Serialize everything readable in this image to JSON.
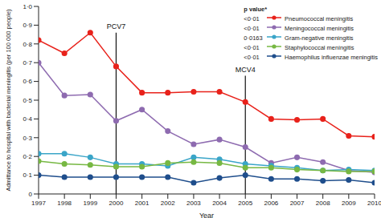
{
  "chart_data": {
    "type": "line",
    "x_label": "Year",
    "y_label": "Admittance to hospital with bacterial meningitis (per 100 000 people)",
    "x": [
      1997,
      1998,
      1999,
      2000,
      2001,
      2002,
      2003,
      2004,
      2005,
      2006,
      2007,
      2008,
      2009,
      2010
    ],
    "xlim": [
      1997,
      2010
    ],
    "xticks": [
      1997,
      1998,
      1999,
      2000,
      2001,
      2002,
      2003,
      2004,
      2005,
      2006,
      2007,
      2008,
      2009,
      2010
    ],
    "ylim": [
      0,
      1.0
    ],
    "yticks": [
      0,
      {
        "value": 0.1,
        "label": "0·1"
      },
      {
        "value": 0.2,
        "label": "0·2"
      },
      {
        "value": 0.3,
        "label": "0·3"
      },
      {
        "value": 0.4,
        "label": "0·4"
      },
      {
        "value": 0.5,
        "label": "0·5"
      },
      {
        "value": 0.6,
        "label": "0·6"
      },
      {
        "value": 0.7,
        "label": "0·7"
      },
      {
        "value": 0.8,
        "label": "0·8"
      },
      {
        "value": 0.9,
        "label": "0·9"
      },
      {
        "value": 1.0,
        "label": "1·0"
      }
    ],
    "grid": false,
    "legend": "upper right",
    "legend_title": "p value*",
    "series": [
      {
        "name": "Pneumococcal meningitis",
        "p_value": "<0·01",
        "color": "#e8221b",
        "marker": "circle",
        "values": [
          0.82,
          0.75,
          0.86,
          0.68,
          0.54,
          0.54,
          0.545,
          0.545,
          0.49,
          0.4,
          0.395,
          0.4,
          0.31,
          0.305
        ]
      },
      {
        "name": "Meningococcal meningitis",
        "p_value": "<0·01",
        "color": "#8e6bb0",
        "marker": "circle",
        "values": [
          0.7,
          0.525,
          0.53,
          0.39,
          0.45,
          0.335,
          0.265,
          0.29,
          0.25,
          0.165,
          0.195,
          0.17,
          0.125,
          0.115
        ]
      },
      {
        "name": "Gram-negative meningitis",
        "p_value": "0·0163",
        "color": "#3aa5c8",
        "marker": "circle",
        "values": [
          0.215,
          0.215,
          0.195,
          0.16,
          0.16,
          0.15,
          0.195,
          0.185,
          0.16,
          0.15,
          0.14,
          0.125,
          0.13,
          0.125
        ]
      },
      {
        "name": "Staphylococcal meningitis",
        "p_value": "<0·01",
        "color": "#77b843",
        "marker": "circle",
        "values": [
          0.175,
          0.16,
          0.155,
          0.145,
          0.145,
          0.165,
          0.17,
          0.165,
          0.14,
          0.14,
          0.13,
          0.125,
          0.12,
          0.12
        ]
      },
      {
        "name": "Haemophilus influenzae meningitis",
        "p_value": "<0·01",
        "color": "#1f4e8c",
        "marker": "circle",
        "values": [
          0.1,
          0.09,
          0.09,
          0.09,
          0.09,
          0.09,
          0.06,
          0.085,
          0.1,
          0.08,
          0.08,
          0.07,
          0.075,
          0.06
        ]
      }
    ],
    "annotations": [
      {
        "text": "PCV7",
        "x": 2000,
        "y": 0.86
      },
      {
        "text": "MCV4",
        "x": 2005,
        "y": 0.63
      }
    ]
  }
}
